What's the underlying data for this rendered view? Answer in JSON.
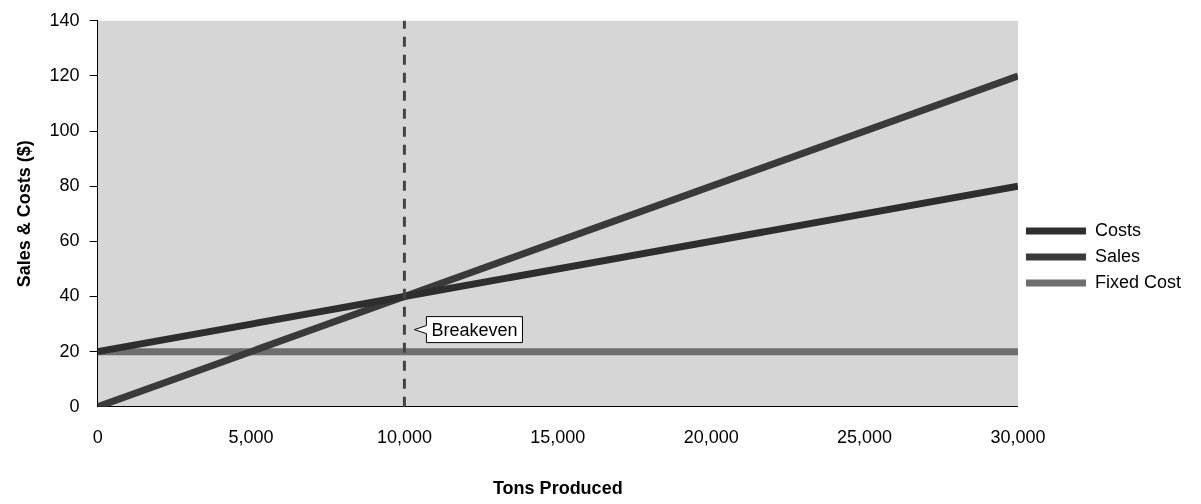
{
  "chart_data": {
    "type": "line",
    "xlabel": "Tons Produced",
    "ylabel": "Sales & Costs ($)",
    "x": [
      0,
      10000,
      30000
    ],
    "series": [
      {
        "name": "Costs",
        "color": "#2e2e2e",
        "values": [
          20,
          40,
          80
        ]
      },
      {
        "name": "Sales",
        "color": "#3a3a3a",
        "values": [
          0,
          40,
          120
        ]
      },
      {
        "name": "Fixed Cost",
        "color": "#6e6e6e",
        "values": [
          20,
          20,
          20
        ]
      }
    ],
    "xlim": [
      0,
      30000
    ],
    "xticks": [
      0,
      {
        "value": 5000,
        "label": "5,000"
      },
      {
        "value": 10000,
        "label": "10,000"
      },
      {
        "value": 15000,
        "label": "15,000"
      },
      {
        "value": 20000,
        "label": "20,000"
      },
      {
        "value": 25000,
        "label": "25,000"
      },
      {
        "value": 30000,
        "label": "30,000"
      }
    ],
    "ylim": [
      0,
      140
    ],
    "yticks": [
      0,
      20,
      40,
      60,
      80,
      100,
      120,
      140
    ],
    "ref_lines": [
      {
        "axis": "x",
        "value": 10000,
        "line_style": "dashed",
        "color": "#444444"
      }
    ],
    "annotations": [
      "Breakeven"
    ],
    "legend": "right",
    "marker": "none",
    "line_style": "solid"
  }
}
